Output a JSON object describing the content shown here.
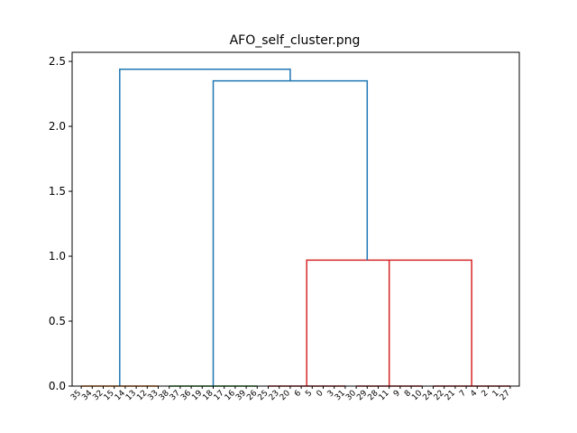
{
  "chart_data": {
    "type": "dendrogram",
    "title": "AFO_self_cluster.png",
    "xlabel": "",
    "ylabel": "",
    "ylim": [
      0,
      2.5
    ],
    "yticks": [
      "0.0",
      "0.5",
      "1.0",
      "1.5",
      "2.0",
      "2.5"
    ],
    "leaves": [
      "35",
      "34",
      "32",
      "15",
      "14",
      "13",
      "12",
      "33",
      "38",
      "37",
      "36",
      "19",
      "18",
      "17",
      "16",
      "39",
      "26",
      "25",
      "23",
      "20",
      "6",
      "5",
      "0",
      "3",
      "31",
      "30",
      "29",
      "28",
      "11",
      "9",
      "8",
      "10",
      "24",
      "22",
      "21",
      "7",
      "4",
      "2",
      "1",
      "27"
    ],
    "colors": {
      "link": "#1f77b4",
      "c1": "#ff7f0e",
      "c2": "#2ca02c",
      "c3": "#d62728"
    },
    "links": [
      {
        "name": "link-orange-cluster",
        "color": "#ff7f0e",
        "left_leaf": 0,
        "right_leaf": 7,
        "height": 0.0,
        "left_height": 0.0,
        "right_height": 0.0
      },
      {
        "name": "link-green-cluster",
        "color": "#2ca02c",
        "left_leaf": 8,
        "right_leaf": 16,
        "height": 0.0,
        "left_height": 0.0,
        "right_height": 0.0
      },
      {
        "name": "link-red-sub-a",
        "color": "#d62728",
        "left_leaf": 17,
        "right_leaf": 24,
        "height": 0.0,
        "left_height": 0.0,
        "right_height": 0.0
      },
      {
        "name": "link-red-sub-b",
        "color": "#d62728",
        "left_leaf": 25,
        "right_leaf": 31,
        "height": 0.0,
        "left_height": 0.0,
        "right_height": 0.0
      },
      {
        "name": "link-red-sub-c",
        "color": "#d62728",
        "left_leaf": 32,
        "right_leaf": 39,
        "height": 0.0,
        "left_height": 0.0,
        "right_height": 0.0
      },
      {
        "name": "link-red-bc",
        "color": "#d62728",
        "left_x": 28.0,
        "right_x": 35.5,
        "height": 0.97,
        "left_height": 0.0,
        "right_height": 0.0
      },
      {
        "name": "link-red-abc",
        "color": "#d62728",
        "left_x": 20.5,
        "right_x": 28.0,
        "height": 0.97,
        "left_height": 0.0,
        "right_height": 0.97
      },
      {
        "name": "link-blue-green-red",
        "color": "#1f77b4",
        "left_x": 12.0,
        "right_x": 26.0,
        "height": 2.35,
        "left_height": 0.0,
        "right_height": 0.97
      },
      {
        "name": "link-blue-root",
        "color": "#1f77b4",
        "left_x": 3.5,
        "right_x": 19.0,
        "height": 2.44,
        "left_height": 0.0,
        "right_height": 2.35
      }
    ]
  }
}
